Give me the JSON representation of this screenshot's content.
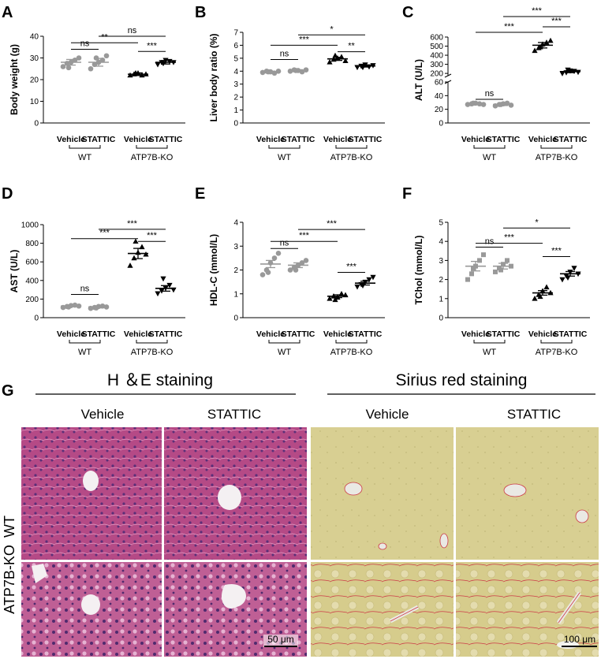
{
  "colors": {
    "wt": "#999999",
    "ko": "#000000",
    "he_bg": "#b54a86",
    "he_cell": "#d26ea3",
    "he_nuc": "#5a2f78",
    "sirius_bg": "#d8cf92",
    "sirius_fiber": "#cc3a46"
  },
  "chart_data": [
    {
      "panel": "A",
      "type": "scatter",
      "ylabel": "Body weight (g)",
      "ylim": [
        0,
        40
      ],
      "yticks": [
        "0",
        "10",
        "20",
        "30",
        "40"
      ],
      "categories": [
        "Vehicle",
        "STATTIC",
        "Vehicle",
        "STATTIC"
      ],
      "groups": [
        "WT",
        "ATP7B-KO"
      ],
      "means": [
        28,
        28,
        22.5,
        28
      ],
      "sems": [
        1.3,
        1.8,
        0.6,
        0.8
      ],
      "points": [
        [
          26,
          27.5,
          28,
          29,
          30,
          25.5
        ],
        [
          25,
          27,
          28,
          29,
          31,
          30
        ],
        [
          22,
          22.5,
          23,
          22,
          22.5,
          23
        ],
        [
          27,
          28,
          29,
          28.5,
          28,
          27.5
        ]
      ],
      "comparisons": [
        {
          "a": 0,
          "b": 1,
          "label": "ns",
          "y": 34
        },
        {
          "a": 0,
          "b": 2,
          "label": "**",
          "y": 37
        },
        {
          "a": 2,
          "b": 3,
          "label": "***",
          "y": 33
        },
        {
          "a": 1,
          "b": 3,
          "label": "ns",
          "y": 40
        }
      ]
    },
    {
      "panel": "B",
      "type": "scatter",
      "ylabel": "Liver body ratio (%)",
      "ylim": [
        0,
        7
      ],
      "yticks": [
        "0",
        "1",
        "2",
        "3",
        "4",
        "5",
        "6",
        "7"
      ],
      "categories": [
        "Vehicle",
        "STATTIC",
        "Vehicle",
        "STATTIC"
      ],
      "groups": [
        "WT",
        "ATP7B-KO"
      ],
      "means": [
        3.95,
        4.05,
        4.95,
        4.4
      ],
      "sems": [
        0.05,
        0.06,
        0.12,
        0.08
      ],
      "points": [
        [
          3.9,
          4.0,
          3.95,
          3.85,
          4.0,
          3.95
        ],
        [
          4.0,
          4.1,
          4.05,
          3.95,
          4.1,
          4.05
        ],
        [
          4.7,
          4.9,
          5.0,
          5.1,
          4.8,
          5.2
        ],
        [
          4.3,
          4.4,
          4.5,
          4.35,
          4.45,
          4.3
        ]
      ],
      "comparisons": [
        {
          "a": 0,
          "b": 1,
          "label": "ns",
          "y": 4.9
        },
        {
          "a": 0,
          "b": 2,
          "label": "***",
          "y": 6.0
        },
        {
          "a": 2,
          "b": 3,
          "label": "**",
          "y": 5.5
        },
        {
          "a": 1,
          "b": 3,
          "label": "*",
          "y": 6.8
        }
      ]
    },
    {
      "panel": "C",
      "type": "scatter",
      "ylabel": "ALT (U/L)",
      "yticks_low": [
        "0",
        "20",
        "40",
        "60"
      ],
      "yticks_high": [
        "200",
        "300",
        "400",
        "500",
        "600"
      ],
      "categories": [
        "Vehicle",
        "STATTIC",
        "Vehicle",
        "STATTIC"
      ],
      "groups": [
        "WT",
        "ATP7B-KO"
      ],
      "means": [
        28,
        27,
        510,
        220
      ],
      "sems": [
        1,
        1.5,
        30,
        12
      ],
      "points": [
        [
          27,
          28,
          29,
          28,
          27,
          29
        ],
        [
          25,
          27,
          28,
          29,
          26,
          27
        ],
        [
          450,
          480,
          520,
          540,
          560,
          490
        ],
        [
          200,
          210,
          230,
          225,
          215,
          240
        ]
      ],
      "comparisons": [
        {
          "a": 0,
          "b": 1,
          "label": "ns"
        },
        {
          "a": 0,
          "b": 2,
          "label": "***"
        },
        {
          "a": 2,
          "b": 3,
          "label": "***"
        },
        {
          "a": 1,
          "b": 3,
          "label": "***"
        }
      ]
    },
    {
      "panel": "D",
      "type": "scatter",
      "ylabel": "AST (U/L)",
      "ylim": [
        0,
        1000
      ],
      "yticks": [
        "0",
        "200",
        "400",
        "600",
        "800",
        "1000"
      ],
      "categories": [
        "Vehicle",
        "STATTIC",
        "Vehicle",
        "STATTIC"
      ],
      "groups": [
        "WT",
        "ATP7B-KO"
      ],
      "means": [
        125,
        115,
        690,
        315
      ],
      "sems": [
        8,
        10,
        55,
        30
      ],
      "points": [
        [
          110,
          120,
          130,
          135,
          125,
          115
        ],
        [
          100,
          110,
          120,
          125,
          115,
          105
        ],
        [
          560,
          640,
          700,
          760,
          680,
          820
        ],
        [
          260,
          290,
          320,
          350,
          300,
          420
        ]
      ],
      "comparisons": [
        {
          "a": 0,
          "b": 1,
          "label": "ns",
          "y": 250
        },
        {
          "a": 0,
          "b": 2,
          "label": "***",
          "y": 850
        },
        {
          "a": 2,
          "b": 3,
          "label": "***",
          "y": 820
        },
        {
          "a": 1,
          "b": 3,
          "label": "***",
          "y": 950
        }
      ]
    },
    {
      "panel": "E",
      "type": "scatter",
      "ylabel": "HDL-C (mmol/L)",
      "ylim": [
        0,
        4
      ],
      "yticks": [
        "0",
        "1",
        "2",
        "3",
        "4"
      ],
      "categories": [
        "Vehicle",
        "STATTIC",
        "Vehicle",
        "STATTIC"
      ],
      "groups": [
        "WT",
        "ATP7B-KO"
      ],
      "means": [
        2.25,
        2.2,
        0.9,
        1.45
      ],
      "sems": [
        0.15,
        0.1,
        0.06,
        0.08
      ],
      "points": [
        [
          1.8,
          2.0,
          2.3,
          2.5,
          2.7,
          1.9
        ],
        [
          2.0,
          2.1,
          2.2,
          2.3,
          2.4,
          2.0
        ],
        [
          0.8,
          0.9,
          0.85,
          1.0,
          0.95,
          0.75
        ],
        [
          1.3,
          1.4,
          1.5,
          1.6,
          1.7,
          1.35
        ]
      ],
      "comparisons": [
        {
          "a": 0,
          "b": 1,
          "label": "ns",
          "y": 2.9
        },
        {
          "a": 0,
          "b": 2,
          "label": "***",
          "y": 3.2
        },
        {
          "a": 2,
          "b": 3,
          "label": "***",
          "y": 1.9
        },
        {
          "a": 1,
          "b": 3,
          "label": "***",
          "y": 3.7
        }
      ]
    },
    {
      "panel": "F",
      "type": "scatter",
      "ylabel": "TChol (mmol/L)",
      "ylim": [
        0,
        5
      ],
      "yticks": [
        "0",
        "1",
        "2",
        "3",
        "4",
        "5"
      ],
      "categories": [
        "Vehicle",
        "STATTIC",
        "Vehicle",
        "STATTIC"
      ],
      "groups": [
        "WT",
        "ATP7B-KO"
      ],
      "means": [
        2.7,
        2.7,
        1.3,
        2.3
      ],
      "sems": [
        0.25,
        0.15,
        0.12,
        0.12
      ],
      "points": [
        [
          2.0,
          2.3,
          2.7,
          3.0,
          3.3,
          2.6
        ],
        [
          2.4,
          2.6,
          2.8,
          3.0,
          2.7,
          2.5
        ],
        [
          1.0,
          1.2,
          1.4,
          1.6,
          1.3,
          1.1
        ],
        [
          2.0,
          2.2,
          2.4,
          2.6,
          2.3,
          2.1
        ]
      ],
      "comparisons": [
        {
          "a": 0,
          "b": 1,
          "label": "ns",
          "y": 3.7
        },
        {
          "a": 0,
          "b": 2,
          "label": "***",
          "y": 3.9
        },
        {
          "a": 2,
          "b": 3,
          "label": "***",
          "y": 3.2
        },
        {
          "a": 1,
          "b": 3,
          "label": "*",
          "y": 4.7
        }
      ]
    }
  ],
  "histology": {
    "letter": "G",
    "he_title": "H ＆E staining",
    "sirius_title": "Sirius red staining",
    "columns": [
      "Vehicle",
      "STATTIC",
      "Vehicle",
      "STATTIC"
    ],
    "rows": [
      "WT",
      "ATP7B-KO"
    ],
    "scale_he": "50 μm",
    "scale_sirius": "100 μm"
  }
}
